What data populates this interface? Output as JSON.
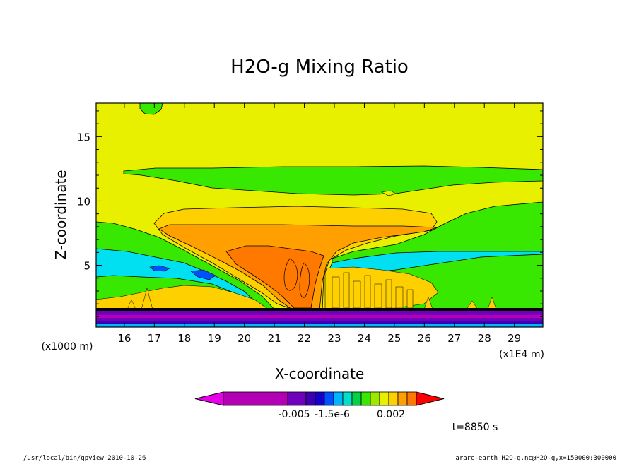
{
  "chart_data": {
    "type": "heatmap",
    "title": "H2O-g Mixing Ratio",
    "xlabel": "X-coordinate",
    "ylabel": "Z-coordinate",
    "xunit": "(x1E4 m)",
    "yunit": "(x1000 m)",
    "x_ticks": [
      "16",
      "17",
      "18",
      "19",
      "20",
      "21",
      "22",
      "23",
      "24",
      "25",
      "26",
      "27",
      "28",
      "29"
    ],
    "y_ticks": [
      "5",
      "10",
      "15"
    ],
    "xlim": [
      15.06,
      29.95
    ],
    "ylim": [
      0.2,
      17.6
    ],
    "grid": false,
    "colorbar": {
      "labels": [
        "-0.005",
        "-1.5e-6",
        "0.002"
      ],
      "colors": [
        "#e800e8",
        "#b400b4",
        "#7000bc",
        "#3c00b4",
        "#1400c8",
        "#0050ff",
        "#00b4ff",
        "#00e0c8",
        "#00d24a",
        "#38e800",
        "#9ee800",
        "#e8f000",
        "#ffd000",
        "#ffa000",
        "#ff7800",
        "#ff0000"
      ]
    },
    "time_label": "t=8850 s"
  },
  "footer": {
    "left": "/usr/local/bin/gpview  2010-10-26",
    "right": "arare-earth_H2O-g.nc@H2O-g,x=150000:300000"
  }
}
